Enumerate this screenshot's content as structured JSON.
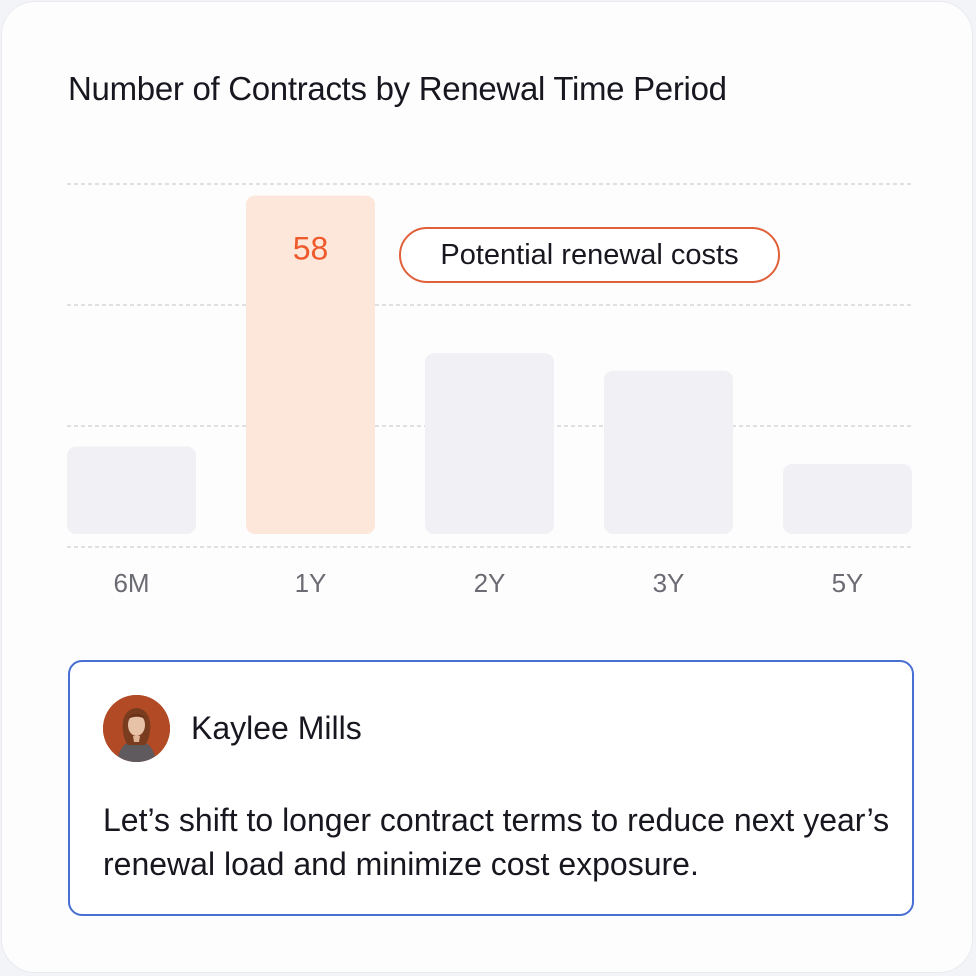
{
  "chart_data": {
    "type": "bar",
    "title": "Number of Contracts by Renewal Time Period",
    "categories": [
      "6M",
      "1Y",
      "2Y",
      "3Y",
      "5Y"
    ],
    "values": [
      15,
      58,
      31,
      28,
      12
    ],
    "ylim": [
      0,
      60
    ],
    "grid": true,
    "highlight_index": 1,
    "highlight_label": "58",
    "annotation": "Potential renewal costs",
    "colors": {
      "bar": "#f1f1f5",
      "highlight_bar": "#fde6da",
      "highlight_text": "#ee5a2c",
      "grid": "#d6d6dc",
      "annotation_border": "#e0603a"
    }
  },
  "comment": {
    "author": "Kaylee Mills",
    "avatar_icon": "user-avatar",
    "text": "Let’s shift to longer contract terms to reduce next year’s renewal load and minimize cost exposure.",
    "border_color": "#4a6fd3"
  }
}
